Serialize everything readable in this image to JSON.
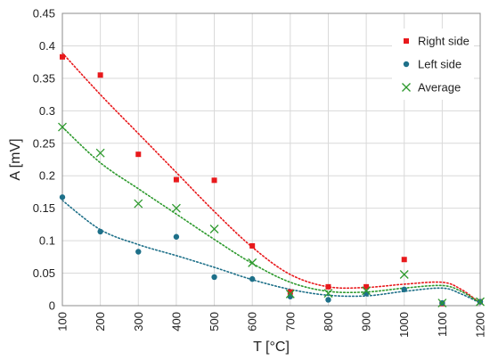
{
  "chart_data": {
    "type": "scatter",
    "xlabel": "T [°C]",
    "ylabel": "A [mV]",
    "xlim": [
      100,
      1200
    ],
    "ylim": [
      0,
      0.45
    ],
    "x_ticks": [
      100,
      200,
      300,
      400,
      500,
      600,
      700,
      800,
      900,
      1000,
      1100,
      1200
    ],
    "y_ticks": [
      0,
      0.05,
      0.1,
      0.15,
      0.2,
      0.25,
      0.3,
      0.35,
      0.4,
      0.45
    ],
    "y_tick_labels": [
      "0",
      "0.05",
      "0.1",
      "0.15",
      "0.2",
      "0.25",
      "0.3",
      "0.35",
      "0.4",
      "0.45"
    ],
    "grid": "horizontal and vertical",
    "legend_position": "top-right",
    "series": [
      {
        "name": "Right side",
        "marker": "square",
        "color": "#e8191c",
        "trend_line": "dotted",
        "x": [
          100,
          200,
          300,
          400,
          500,
          600,
          700,
          800,
          900,
          1000,
          1100,
          1200
        ],
        "y": [
          0.383,
          0.355,
          0.233,
          0.194,
          0.193,
          0.092,
          0.021,
          0.029,
          0.029,
          0.071,
          0.003,
          0.006
        ],
        "trend_x": [
          100,
          200,
          300,
          400,
          500,
          600,
          700,
          800,
          900,
          1000,
          1100,
          1150,
          1200
        ],
        "trend_y": [
          0.389,
          0.325,
          0.265,
          0.205,
          0.145,
          0.09,
          0.048,
          0.029,
          0.028,
          0.033,
          0.036,
          0.025,
          0.004
        ]
      },
      {
        "name": "Left side",
        "marker": "circle",
        "color": "#1e7089",
        "trend_line": "dotted",
        "x": [
          100,
          200,
          300,
          400,
          500,
          600,
          700,
          800,
          900,
          1000,
          1100,
          1200
        ],
        "y": [
          0.167,
          0.114,
          0.083,
          0.106,
          0.044,
          0.041,
          0.014,
          0.009,
          0.019,
          0.025,
          0.004,
          0.006
        ],
        "trend_x": [
          100,
          200,
          300,
          400,
          500,
          600,
          700,
          800,
          900,
          1000,
          1100,
          1150,
          1200
        ],
        "trend_y": [
          0.162,
          0.117,
          0.094,
          0.077,
          0.059,
          0.04,
          0.025,
          0.016,
          0.015,
          0.022,
          0.027,
          0.018,
          0.004
        ]
      },
      {
        "name": "Average",
        "marker": "x",
        "color": "#2e9a2e",
        "trend_line": "dotted",
        "x": [
          100,
          200,
          300,
          400,
          500,
          600,
          700,
          800,
          900,
          1000,
          1100,
          1200
        ],
        "y": [
          0.275,
          0.235,
          0.157,
          0.15,
          0.118,
          0.066,
          0.018,
          0.019,
          0.023,
          0.048,
          0.004,
          0.006
        ],
        "trend_x": [
          100,
          200,
          300,
          400,
          500,
          600,
          700,
          800,
          900,
          1000,
          1100,
          1150,
          1200
        ],
        "trend_y": [
          0.275,
          0.22,
          0.18,
          0.141,
          0.102,
          0.065,
          0.036,
          0.022,
          0.021,
          0.027,
          0.031,
          0.022,
          0.004
        ]
      }
    ]
  }
}
